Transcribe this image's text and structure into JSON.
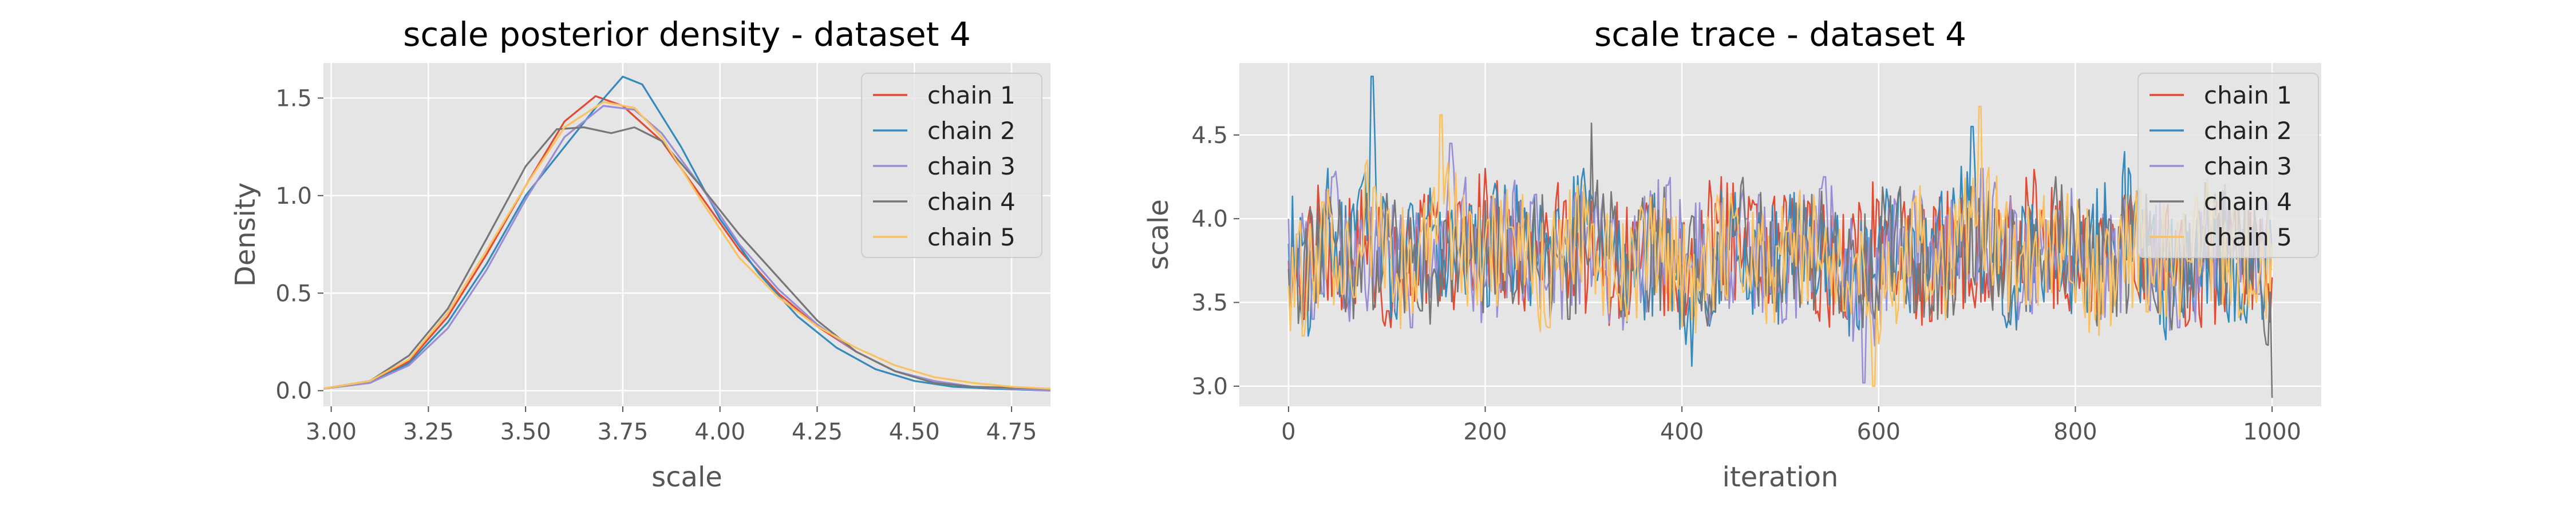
{
  "chart_data": [
    {
      "type": "area",
      "title": "scale posterior density - dataset 4",
      "xlabel": "scale",
      "ylabel": "Density",
      "xlim": [
        2.98,
        4.85
      ],
      "ylim": [
        -0.08,
        1.68
      ],
      "xticks": [
        3.0,
        3.25,
        3.5,
        3.75,
        4.0,
        4.25,
        4.5,
        4.75
      ],
      "xtick_labels": [
        "3.00",
        "3.25",
        "3.50",
        "3.75",
        "4.00",
        "4.25",
        "4.50",
        "4.75"
      ],
      "yticks": [
        0.0,
        0.5,
        1.0,
        1.5
      ],
      "ytick_labels": [
        "0.0",
        "0.5",
        "1.0",
        "1.5"
      ],
      "grid": true,
      "legend_position": "top-right",
      "series": [
        {
          "name": "chain 1",
          "color": "#E24A33",
          "x": [
            2.98,
            3.1,
            3.2,
            3.3,
            3.4,
            3.5,
            3.6,
            3.68,
            3.75,
            3.85,
            3.95,
            4.05,
            4.15,
            4.25,
            4.35,
            4.45,
            4.55,
            4.65,
            4.75,
            4.85
          ],
          "y": [
            0.01,
            0.05,
            0.15,
            0.38,
            0.7,
            1.05,
            1.38,
            1.51,
            1.46,
            1.28,
            1.0,
            0.72,
            0.5,
            0.33,
            0.2,
            0.1,
            0.05,
            0.02,
            0.01,
            0.01
          ]
        },
        {
          "name": "chain 2",
          "color": "#348ABD",
          "x": [
            2.98,
            3.1,
            3.2,
            3.3,
            3.4,
            3.5,
            3.6,
            3.68,
            3.75,
            3.8,
            3.9,
            4.0,
            4.1,
            4.2,
            4.3,
            4.4,
            4.5,
            4.6,
            4.7,
            4.85
          ],
          "y": [
            0.01,
            0.04,
            0.14,
            0.35,
            0.65,
            1.0,
            1.25,
            1.45,
            1.61,
            1.57,
            1.25,
            0.88,
            0.6,
            0.38,
            0.22,
            0.11,
            0.05,
            0.02,
            0.01,
            0.0
          ]
        },
        {
          "name": "chain 3",
          "color": "#988ED5",
          "x": [
            2.98,
            3.1,
            3.2,
            3.3,
            3.4,
            3.5,
            3.6,
            3.7,
            3.78,
            3.85,
            3.95,
            4.05,
            4.15,
            4.25,
            4.35,
            4.45,
            4.55,
            4.65,
            4.75,
            4.85
          ],
          "y": [
            0.01,
            0.04,
            0.13,
            0.32,
            0.62,
            0.98,
            1.3,
            1.46,
            1.44,
            1.32,
            1.05,
            0.75,
            0.52,
            0.34,
            0.2,
            0.1,
            0.05,
            0.02,
            0.01,
            0.0
          ]
        },
        {
          "name": "chain 4",
          "color": "#777777",
          "x": [
            2.98,
            3.1,
            3.2,
            3.3,
            3.4,
            3.5,
            3.58,
            3.65,
            3.72,
            3.78,
            3.85,
            3.95,
            4.05,
            4.15,
            4.25,
            4.35,
            4.45,
            4.55,
            4.65,
            4.85
          ],
          "y": [
            0.01,
            0.05,
            0.18,
            0.42,
            0.78,
            1.15,
            1.34,
            1.35,
            1.32,
            1.35,
            1.28,
            1.05,
            0.8,
            0.58,
            0.36,
            0.2,
            0.1,
            0.04,
            0.02,
            0.01
          ]
        },
        {
          "name": "chain 5",
          "color": "#FBC15E",
          "x": [
            2.98,
            3.1,
            3.2,
            3.3,
            3.4,
            3.5,
            3.6,
            3.7,
            3.78,
            3.85,
            3.95,
            4.05,
            4.15,
            4.25,
            4.35,
            4.45,
            4.55,
            4.65,
            4.75,
            4.85
          ],
          "y": [
            0.01,
            0.05,
            0.16,
            0.4,
            0.72,
            1.05,
            1.35,
            1.48,
            1.45,
            1.3,
            0.98,
            0.68,
            0.48,
            0.33,
            0.22,
            0.13,
            0.07,
            0.04,
            0.02,
            0.01
          ]
        }
      ]
    },
    {
      "type": "line",
      "title": "scale trace - dataset 4",
      "xlabel": "iteration",
      "ylabel": "scale",
      "xlim": [
        -50,
        1050
      ],
      "ylim": [
        2.88,
        4.93
      ],
      "xticks": [
        0,
        200,
        400,
        600,
        800,
        1000
      ],
      "xtick_labels": [
        "0",
        "200",
        "400",
        "600",
        "800",
        "1000"
      ],
      "yticks": [
        3.0,
        3.5,
        4.0,
        4.5
      ],
      "ytick_labels": [
        "3.0",
        "3.5",
        "4.0",
        "4.5"
      ],
      "grid": true,
      "legend_position": "top-right",
      "n_iterations": 1000,
      "series": [
        {
          "name": "chain 1",
          "color": "#E24A33",
          "x": [
            0,
            15,
            30,
            50,
            70,
            100,
            130,
            160,
            200,
            240,
            280,
            320,
            360,
            400,
            440,
            480,
            520,
            560,
            600,
            640,
            680,
            720,
            760,
            800,
            840,
            880,
            920,
            960,
            1000
          ],
          "y": [
            3.75,
            3.4,
            4.2,
            3.55,
            4.05,
            3.45,
            3.95,
            3.7,
            4.3,
            3.45,
            4.1,
            3.6,
            3.85,
            3.4,
            4.25,
            3.65,
            3.9,
            3.5,
            4.1,
            3.55,
            3.95,
            3.75,
            4.2,
            3.5,
            3.85,
            3.95,
            3.45,
            3.8,
            3.65
          ]
        },
        {
          "name": "chain 2",
          "color": "#348ABD",
          "x": [
            0,
            20,
            40,
            60,
            85,
            110,
            140,
            180,
            220,
            260,
            300,
            340,
            380,
            410,
            450,
            490,
            530,
            570,
            610,
            650,
            695,
            730,
            770,
            810,
            850,
            890,
            930,
            970,
            1000
          ],
          "y": [
            3.85,
            3.3,
            4.3,
            3.55,
            4.85,
            3.4,
            4.0,
            3.55,
            4.2,
            3.6,
            4.3,
            3.45,
            3.9,
            3.12,
            4.15,
            3.55,
            4.0,
            3.3,
            4.1,
            3.6,
            4.55,
            3.35,
            3.95,
            3.7,
            4.4,
            3.35,
            3.9,
            3.55,
            3.8
          ]
        },
        {
          "name": "chain 3",
          "color": "#988ED5",
          "x": [
            0,
            25,
            45,
            65,
            95,
            125,
            165,
            200,
            235,
            270,
            305,
            345,
            385,
            425,
            465,
            505,
            545,
            585,
            625,
            665,
            705,
            745,
            785,
            825,
            865,
            905,
            945,
            985,
            1000
          ],
          "y": [
            4.0,
            3.4,
            4.25,
            3.6,
            4.05,
            3.35,
            4.45,
            3.6,
            4.1,
            3.5,
            3.95,
            3.45,
            4.2,
            3.55,
            4.0,
            3.4,
            4.25,
            3.02,
            3.95,
            3.6,
            4.3,
            3.5,
            4.05,
            3.4,
            3.95,
            3.35,
            4.1,
            3.55,
            3.7
          ]
        },
        {
          "name": "chain 4",
          "color": "#777777",
          "x": [
            0,
            20,
            40,
            70,
            100,
            135,
            170,
            210,
            250,
            285,
            308,
            340,
            380,
            420,
            460,
            500,
            540,
            580,
            620,
            660,
            700,
            740,
            780,
            820,
            860,
            900,
            940,
            980,
            1000
          ],
          "y": [
            3.7,
            3.45,
            4.0,
            3.6,
            4.15,
            3.45,
            3.95,
            3.55,
            4.1,
            3.4,
            4.57,
            3.55,
            3.9,
            3.45,
            4.2,
            3.6,
            3.95,
            3.5,
            4.15,
            3.4,
            4.0,
            3.6,
            4.25,
            3.45,
            3.9,
            3.55,
            4.05,
            3.6,
            2.93
          ]
        },
        {
          "name": "chain 5",
          "color": "#FBC15E",
          "x": [
            0,
            15,
            35,
            55,
            80,
            120,
            155,
            190,
            225,
            265,
            300,
            335,
            370,
            410,
            450,
            490,
            530,
            565,
            595,
            635,
            675,
            703,
            740,
            780,
            820,
            860,
            900,
            940,
            980,
            1000
          ],
          "y": [
            3.6,
            3.3,
            4.1,
            3.55,
            4.35,
            3.45,
            4.62,
            3.6,
            3.95,
            3.35,
            4.2,
            3.55,
            3.85,
            3.4,
            4.15,
            3.6,
            3.95,
            3.45,
            3.0,
            4.1,
            3.55,
            4.67,
            3.5,
            4.05,
            3.4,
            3.95,
            3.6,
            4.1,
            3.55,
            3.85
          ]
        }
      ]
    }
  ]
}
